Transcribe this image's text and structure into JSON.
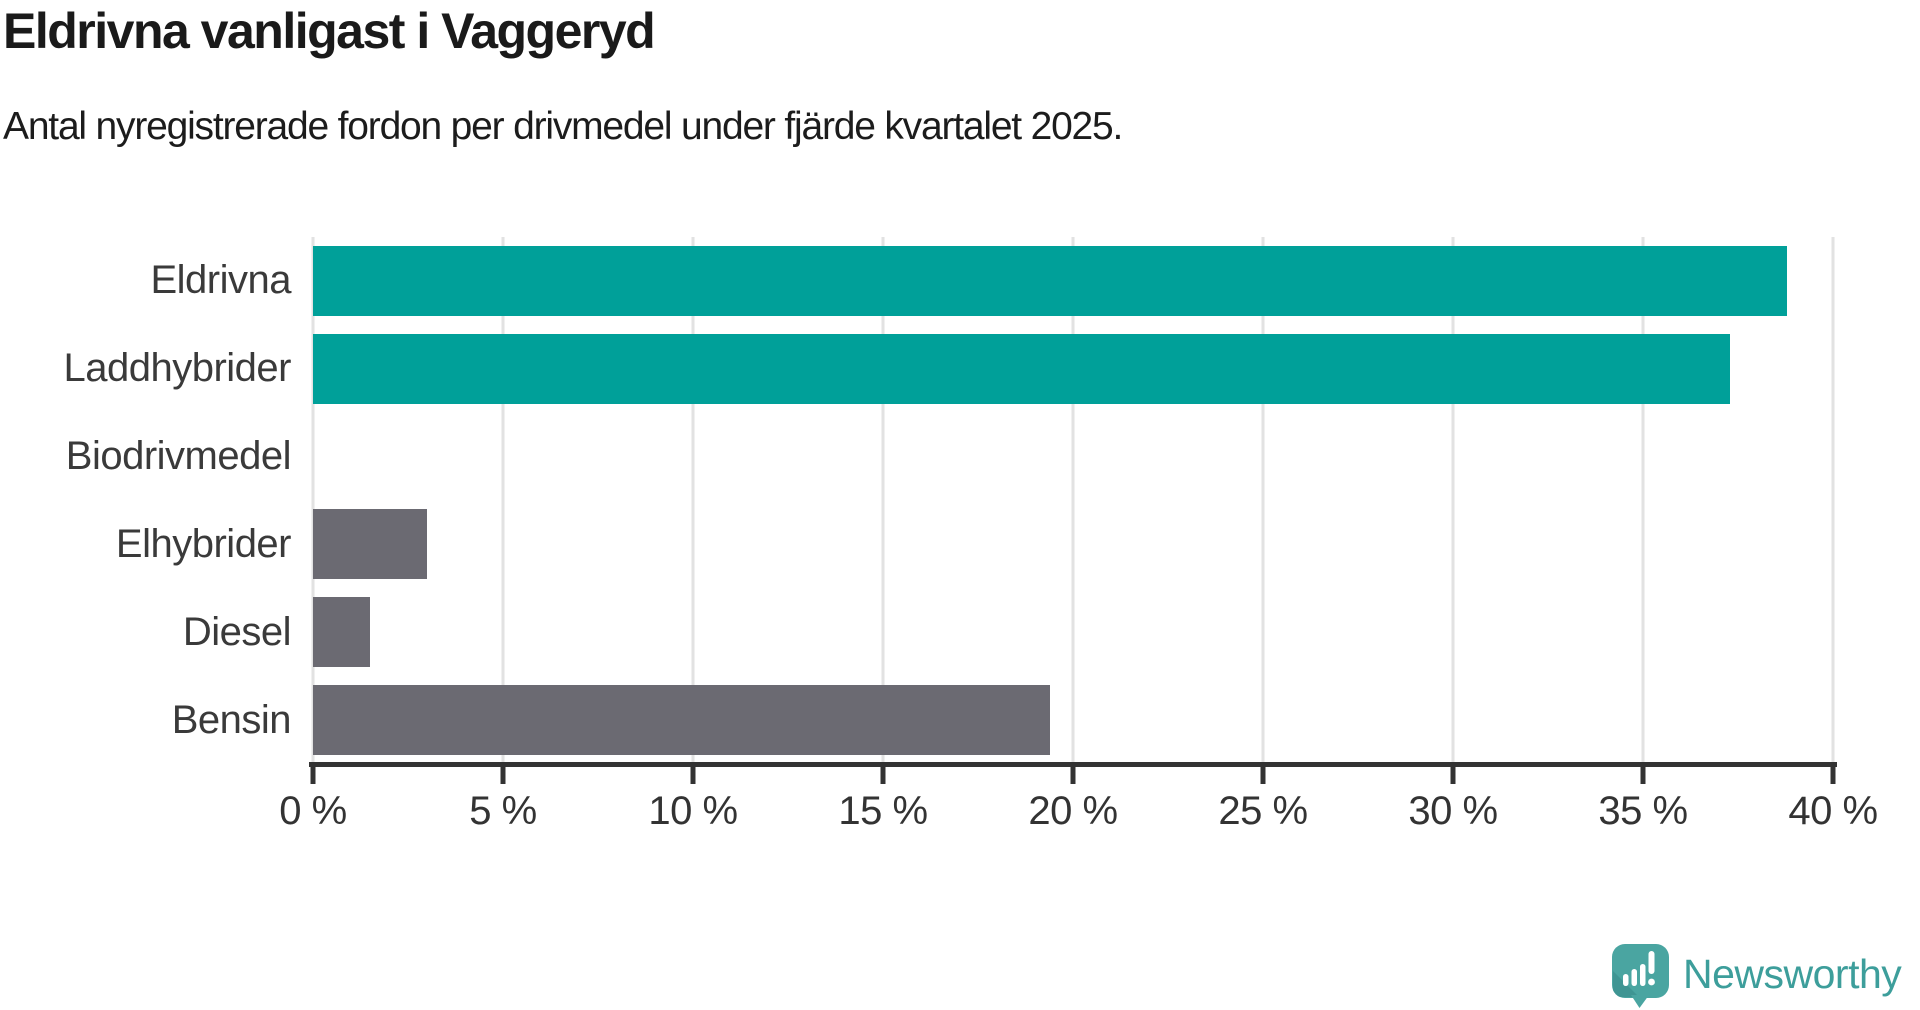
{
  "header": {
    "title": "Eldrivna vanligast i Vaggeryd",
    "subtitle": "Antal nyregistrerade fordon per drivmedel under fjärde kvartalet 2025."
  },
  "chart_data": {
    "type": "bar",
    "orientation": "horizontal",
    "title": "Eldrivna vanligast i Vaggeryd",
    "subtitle": "Antal nyregistrerade fordon per drivmedel under fjärde kvartalet 2025.",
    "categories": [
      "Eldrivna",
      "Laddhybrider",
      "Biodrivmedel",
      "Elhybrider",
      "Diesel",
      "Bensin"
    ],
    "values": [
      38.8,
      37.3,
      0,
      3.0,
      1.5,
      19.4
    ],
    "unit": "%",
    "bar_colors": [
      "#00a099",
      "#00a099",
      "#00a099",
      "#6b6a72",
      "#6b6a72",
      "#6b6a72"
    ],
    "xlim": [
      0,
      40
    ],
    "xticks": [
      0,
      5,
      10,
      15,
      20,
      25,
      30,
      35,
      40
    ],
    "xtick_labels": [
      "0 %",
      "5 %",
      "10 %",
      "15 %",
      "20 %",
      "25 %",
      "30 %",
      "35 %",
      "40 %"
    ],
    "xlabel": "",
    "ylabel": "",
    "grid": "vertical",
    "legend": false
  },
  "footer": {
    "brand": "Newsworthy"
  },
  "colors": {
    "teal_bar": "#00a099",
    "gray_bar": "#6b6a72",
    "gridline": "#e2e2e2",
    "axis": "#333333",
    "tick_label": "#333333",
    "category_label": "#3a3a3a",
    "title_text": "#1a1a1a",
    "logo_bubble": "#4aa5a1",
    "logo_bubble_shade": "#3f9593",
    "logo_text": "#3d9e9b"
  }
}
